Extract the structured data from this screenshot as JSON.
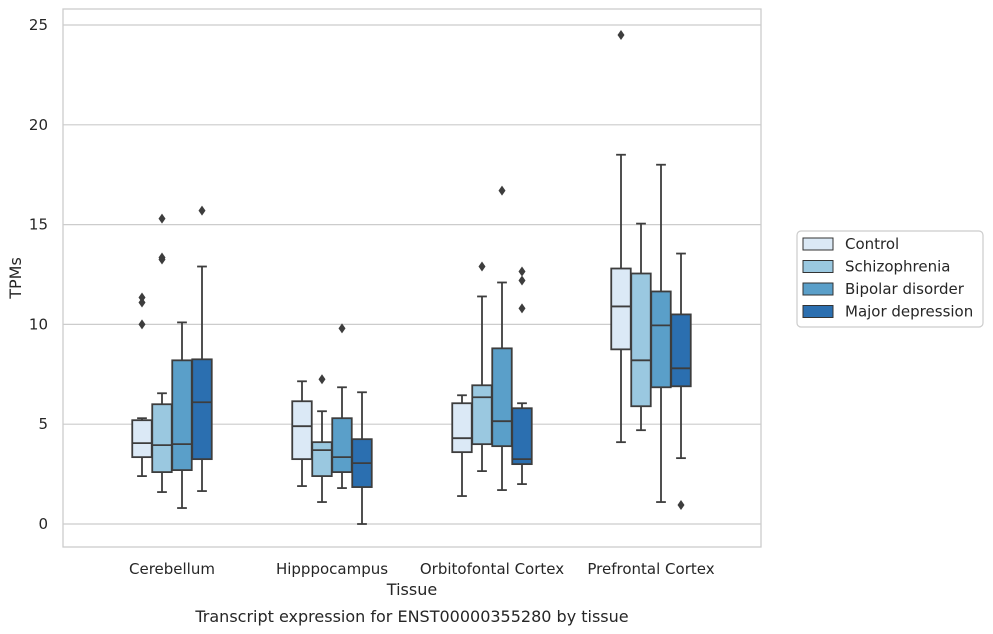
{
  "chart_data": {
    "type": "box",
    "title": "Transcript expression for ENST00000355280 by tissue",
    "xlabel": "Tissue",
    "ylabel": "TPMs",
    "ylim": [
      -1.2,
      25.8
    ],
    "yticks": [
      0,
      5,
      10,
      15,
      20,
      25
    ],
    "grid": true,
    "legend_position": "right",
    "categories": [
      "Cerebellum",
      "Hipppocampus",
      "Orbitofontal Cortex",
      "Prefrontal Cortex"
    ],
    "series": [
      {
        "name": "Control",
        "color": "#dbe9f6",
        "boxes": [
          {
            "whislo": 2.4,
            "q1": 3.35,
            "med": 4.05,
            "q3": 5.2,
            "whishi": 5.3,
            "fliers": [
              10.0,
              11.1,
              11.35
            ]
          },
          {
            "whislo": 1.9,
            "q1": 3.25,
            "med": 4.9,
            "q3": 6.15,
            "whishi": 7.15,
            "fliers": []
          },
          {
            "whislo": 1.4,
            "q1": 3.6,
            "med": 4.3,
            "q3": 6.05,
            "whishi": 6.45,
            "fliers": []
          },
          {
            "whislo": 4.1,
            "q1": 8.75,
            "med": 10.9,
            "q3": 12.8,
            "whishi": 18.5,
            "fliers": [
              24.5
            ]
          }
        ]
      },
      {
        "name": "Schizophrenia",
        "color": "#9ac8e0",
        "boxes": [
          {
            "whislo": 1.6,
            "q1": 2.6,
            "med": 3.95,
            "q3": 6.0,
            "whishi": 6.55,
            "fliers": [
              13.25,
              13.35,
              15.3
            ]
          },
          {
            "whislo": 1.1,
            "q1": 2.4,
            "med": 3.7,
            "q3": 4.1,
            "whishi": 5.65,
            "fliers": [
              7.25
            ]
          },
          {
            "whislo": 2.65,
            "q1": 4.0,
            "med": 6.35,
            "q3": 6.95,
            "whishi": 11.4,
            "fliers": [
              12.9
            ]
          },
          {
            "whislo": 4.7,
            "q1": 5.9,
            "med": 8.2,
            "q3": 12.55,
            "whishi": 15.05,
            "fliers": []
          }
        ]
      },
      {
        "name": "Bipolar disorder",
        "color": "#5a9fc9",
        "boxes": [
          {
            "whislo": 0.8,
            "q1": 2.7,
            "med": 4.0,
            "q3": 8.2,
            "whishi": 10.1,
            "fliers": []
          },
          {
            "whislo": 1.8,
            "q1": 2.6,
            "med": 3.35,
            "q3": 5.3,
            "whishi": 6.85,
            "fliers": [
              9.8
            ]
          },
          {
            "whislo": 1.7,
            "q1": 3.9,
            "med": 5.15,
            "q3": 8.8,
            "whishi": 12.1,
            "fliers": [
              16.7
            ]
          },
          {
            "whislo": 1.1,
            "q1": 6.85,
            "med": 9.95,
            "q3": 11.65,
            "whishi": 18.0,
            "fliers": []
          }
        ]
      },
      {
        "name": "Major depression",
        "color": "#2b6fb0",
        "boxes": [
          {
            "whislo": 1.65,
            "q1": 3.25,
            "med": 6.1,
            "q3": 8.25,
            "whishi": 12.9,
            "fliers": [
              15.7
            ]
          },
          {
            "whislo": 0.0,
            "q1": 1.85,
            "med": 3.05,
            "q3": 4.25,
            "whishi": 6.6,
            "fliers": []
          },
          {
            "whislo": 2.0,
            "q1": 3.0,
            "med": 3.25,
            "q3": 5.8,
            "whishi": 6.05,
            "fliers": [
              10.8,
              12.2,
              12.65
            ]
          },
          {
            "whislo": 3.3,
            "q1": 6.9,
            "med": 7.8,
            "q3": 10.5,
            "whishi": 13.55,
            "fliers": [
              0.95
            ]
          }
        ]
      }
    ],
    "colors": {
      "grid": "#cccccc",
      "frame": "#cccccc",
      "line": "#3d3d3d",
      "text": "#262626"
    }
  }
}
